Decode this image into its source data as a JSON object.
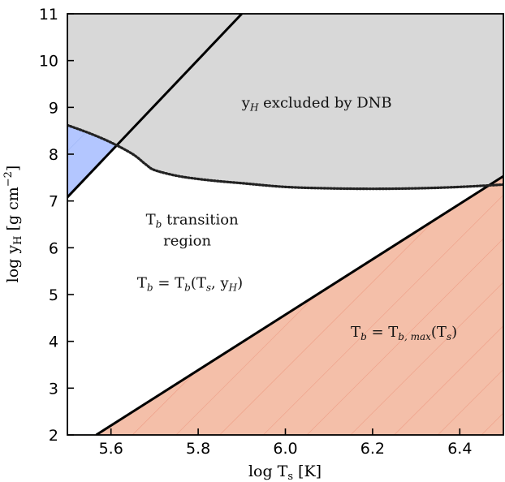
{
  "chart_data": {
    "type": "area",
    "xlabel": "log T",
    "xlabel_sub": "s",
    "xlabel_unit": " [K]",
    "ylabel": "log y",
    "ylabel_sub": "H",
    "ylabel_unit": " [g cm",
    "ylabel_sup": "−2",
    "ylabel_close": "]",
    "xlim": [
      5.5,
      6.5
    ],
    "ylim": [
      2,
      11
    ],
    "xticks": [
      5.6,
      5.8,
      6.0,
      6.2,
      6.4
    ],
    "xtick_labels": [
      "5.6",
      "5.8",
      "6.0",
      "6.2",
      "6.4"
    ],
    "yticks": [
      2,
      3,
      4,
      5,
      6,
      7,
      8,
      9,
      10,
      11
    ],
    "ytick_labels": [
      "2",
      "3",
      "4",
      "5",
      "6",
      "7",
      "8",
      "9",
      "10",
      "11"
    ],
    "grid": false,
    "series": [
      {
        "kind": "solid-line",
        "x": [
          5.5,
          5.9
        ],
        "y": [
          7.08,
          11.0
        ]
      },
      {
        "kind": "solid-line",
        "x": [
          5.566,
          6.5
        ],
        "y": [
          2.0,
          7.53
        ]
      },
      {
        "kind": "dotted-boundary",
        "x": [
          5.5,
          5.55,
          5.6,
          5.65,
          5.68,
          5.7,
          5.75,
          5.8,
          5.85,
          5.9,
          6.0,
          6.1,
          6.2,
          6.3,
          6.4,
          6.5
        ],
        "y": [
          8.62,
          8.45,
          8.25,
          8.0,
          7.78,
          7.66,
          7.54,
          7.47,
          7.42,
          7.38,
          7.3,
          7.27,
          7.26,
          7.27,
          7.3,
          7.35
        ]
      }
    ],
    "regions": [
      {
        "kind": "excluded",
        "fill": "#d8d8d8",
        "label": "excluded by DNB"
      },
      {
        "kind": "max",
        "fill": "#f4bfa9",
        "hatch": "#ee9d85"
      },
      {
        "kind": "small",
        "fill": "#b3c6ff"
      }
    ],
    "annotations": {
      "dnb": {
        "pre": "y",
        "sub": "H",
        "text": " excluded by DNB",
        "x": 5.9,
        "y": 9.0
      },
      "transition_1": {
        "pre": "T",
        "sub": "b",
        "text": " transition",
        "x": 5.68,
        "y": 6.5
      },
      "transition_2": {
        "text": "region",
        "x": 5.72,
        "y": 6.05
      },
      "formula_1": {
        "p1": "T",
        "s1": "b",
        "p2": " = T",
        "s2": "b",
        "p3": "(T",
        "s3": "s",
        "p4": ", y",
        "s4": "H",
        "p5": ")",
        "x": 5.66,
        "y": 5.15
      },
      "formula_2": {
        "p1": "T",
        "s1": "b",
        "p2": " = T",
        "s2": "b, max",
        "p3": "(T",
        "s3": "s",
        "p4": ")",
        "x": 6.15,
        "y": 4.1
      }
    }
  }
}
